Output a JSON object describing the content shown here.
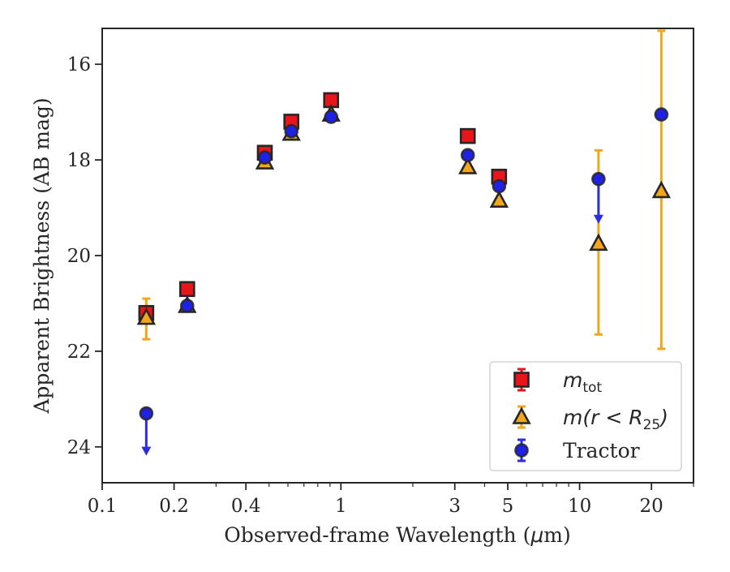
{
  "chart_data": {
    "type": "scatter",
    "xlabel": "Observed-frame Wavelength (μm)",
    "ylabel": "Apparent Brightness (AB mag)",
    "x_scale": "log",
    "xlim": [
      0.1,
      30
    ],
    "ylim": [
      24.75,
      15.25
    ],
    "y_inverted": true,
    "grid": false,
    "legend_position": "bottom-right",
    "x_ticks": [
      {
        "value": 0.1,
        "label": "0.1"
      },
      {
        "value": 0.2,
        "label": "0.2"
      },
      {
        "value": 0.4,
        "label": "0.4"
      },
      {
        "value": 1,
        "label": "1"
      },
      {
        "value": 3,
        "label": "3"
      },
      {
        "value": 5,
        "label": "5"
      },
      {
        "value": 10,
        "label": "10"
      },
      {
        "value": 20,
        "label": "20"
      }
    ],
    "y_ticks": [
      {
        "value": 16,
        "label": "16"
      },
      {
        "value": 18,
        "label": "18"
      },
      {
        "value": 20,
        "label": "20"
      },
      {
        "value": 22,
        "label": "22"
      },
      {
        "value": 24,
        "label": "24"
      }
    ],
    "series": [
      {
        "name": "m_tot",
        "legend": {
          "base": "m",
          "sub": "tot"
        },
        "marker": "square",
        "color": "#e8151b",
        "edge_color": "#262626",
        "error_color": "#e8151b",
        "points": [
          {
            "x": 0.153,
            "y": 21.2
          },
          {
            "x": 0.227,
            "y": 20.7
          },
          {
            "x": 0.48,
            "y": 17.85
          },
          {
            "x": 0.62,
            "y": 17.2
          },
          {
            "x": 0.91,
            "y": 16.75
          },
          {
            "x": 3.4,
            "y": 17.5
          },
          {
            "x": 4.6,
            "y": 18.35
          }
        ]
      },
      {
        "name": "m(r < R25)",
        "legend": {
          "base": "m(r < R",
          "sub": "25",
          "tail": ")"
        },
        "marker": "triangle",
        "color": "#f2a61b",
        "edge_color": "#262626",
        "error_color": "#f2a61b",
        "points": [
          {
            "x": 0.153,
            "y": 21.3,
            "err_low": 20.9,
            "err_high": 21.75
          },
          {
            "x": 0.227,
            "y": 21.05
          },
          {
            "x": 0.48,
            "y": 18.05
          },
          {
            "x": 0.62,
            "y": 17.45
          },
          {
            "x": 0.91,
            "y": 17.05
          },
          {
            "x": 3.4,
            "y": 18.15
          },
          {
            "x": 4.6,
            "y": 18.85
          },
          {
            "x": 12.0,
            "y": 19.75,
            "err_low": 17.8,
            "err_high": 21.65
          },
          {
            "x": 22.0,
            "y": 18.65,
            "err_low": 15.3,
            "err_high": 21.95
          }
        ]
      },
      {
        "name": "Tractor",
        "legend": {
          "base": "Tractor"
        },
        "marker": "circle",
        "color": "#1f22e6",
        "edge_color": "#262626",
        "error_color": "#2b2ee0",
        "points": [
          {
            "x": 0.153,
            "y": 23.3,
            "upper_limit": true,
            "arrow_to": 24.15
          },
          {
            "x": 0.227,
            "y": 21.05
          },
          {
            "x": 0.48,
            "y": 17.95
          },
          {
            "x": 0.62,
            "y": 17.4
          },
          {
            "x": 0.91,
            "y": 17.1
          },
          {
            "x": 3.4,
            "y": 17.9
          },
          {
            "x": 4.6,
            "y": 18.55
          },
          {
            "x": 12.0,
            "y": 18.4,
            "upper_limit": true,
            "arrow_to": 19.3
          },
          {
            "x": 22.0,
            "y": 17.05
          }
        ]
      }
    ]
  }
}
